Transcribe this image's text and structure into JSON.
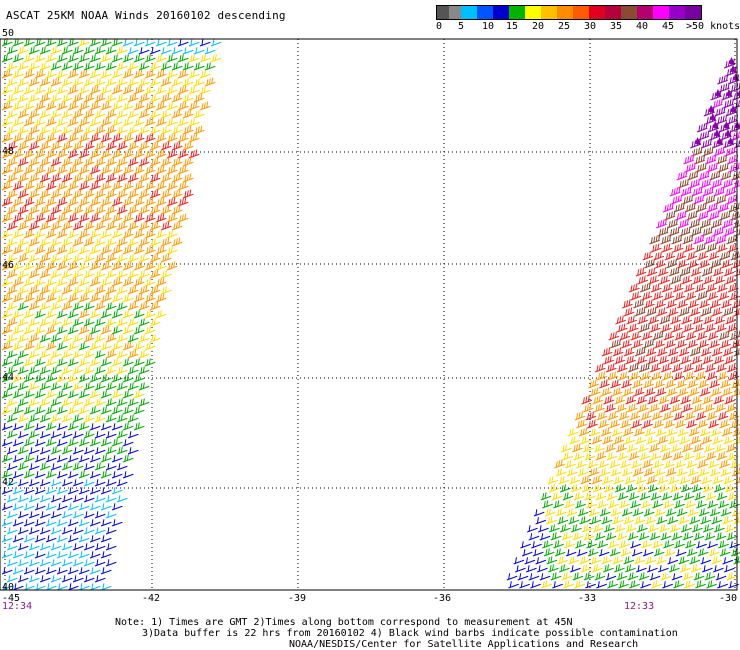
{
  "title": "ASCAT 25KM NOAA Winds 20160102 descending",
  "legend": {
    "colors": [
      "#555555",
      "#888888",
      "#00bfff",
      "#0055ff",
      "#0000cc",
      "#00b400",
      "#ffff00",
      "#ffc000",
      "#ff8c00",
      "#ff5a00",
      "#e00020",
      "#b4003c",
      "#8b4a32",
      "#b4006e",
      "#ff00ff",
      "#9600c8",
      "#7800a0"
    ],
    "labels": [
      "0",
      "5",
      "10",
      "15",
      "20",
      "25",
      "30",
      "35",
      "40",
      "45",
      ">50 knots"
    ]
  },
  "axes": {
    "lat_labels": [
      "50",
      "48",
      "46",
      "44",
      "42",
      "40"
    ],
    "lon_labels": [
      "-45",
      "-42",
      "-39",
      "-36",
      "-33",
      "-30"
    ]
  },
  "swaths": {
    "left_time": "12:34",
    "right_time": "12:33"
  },
  "notes": [
    "Note: 1) Times are GMT 2)Times along bottom correspond to measurement at 45N",
    "3)Data buffer is 22 hrs from 20160102 4) Black wind barbs indicate possible contamination",
    "NOAA/NESDIS/Center for Satellite Applications and Research"
  ],
  "wind_color_scale": {
    "bands": [
      {
        "max_knots": 5,
        "color": "#666666"
      },
      {
        "max_knots": 10,
        "color": "#00bfff"
      },
      {
        "max_knots": 15,
        "color": "#0000dd"
      },
      {
        "max_knots": 20,
        "color": "#00aa00"
      },
      {
        "max_knots": 25,
        "color": "#ffdd00"
      },
      {
        "max_knots": 30,
        "color": "#ff9a00"
      },
      {
        "max_knots": 35,
        "color": "#ee2020"
      },
      {
        "max_knots": 40,
        "color": "#8b4a32"
      },
      {
        "max_knots": 45,
        "color": "#ff00ff"
      },
      {
        "max_knots": 60,
        "color": "#8800aa"
      }
    ]
  }
}
